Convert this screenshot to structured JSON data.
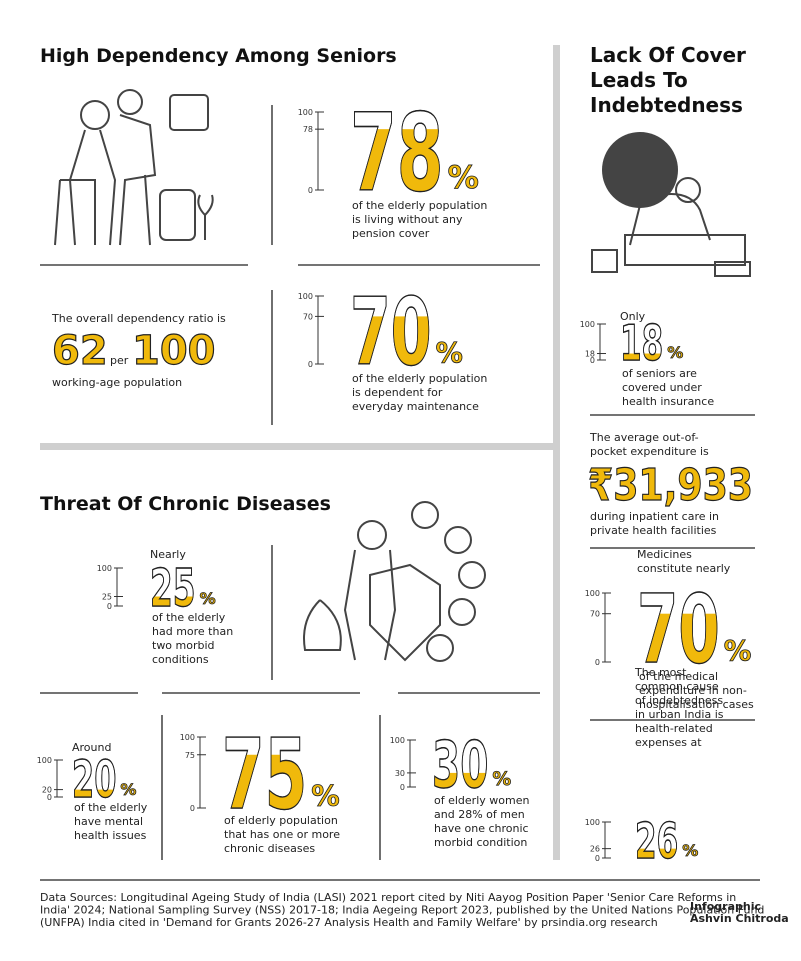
{
  "dependency": {
    "title": "High Dependency Among Seniors",
    "stats": [
      {
        "value": 78,
        "unit": "%",
        "scale": [
          100,
          78,
          0
        ],
        "text": [
          "of the elderly population",
          "is living without any",
          "pension cover"
        ]
      },
      {
        "value": 70,
        "unit": "%",
        "scale": [
          100,
          70,
          0
        ],
        "text": [
          "of the elderly population",
          "is dependent for",
          "everyday maintenance"
        ]
      }
    ],
    "ratio": {
      "intro": "The overall dependency ratio is",
      "value": 62,
      "per": "per",
      "base": 100,
      "outro": "working-age population"
    }
  },
  "chronic": {
    "title": "Threat Of Chronic Diseases",
    "stats": [
      {
        "lead": [
          "Nearly"
        ],
        "value": 25,
        "unit": "%",
        "scale": [
          100,
          25,
          0
        ],
        "text": [
          "of the elderly",
          "had more than",
          "two morbid",
          "conditions"
        ]
      },
      {
        "lead": [
          "Around"
        ],
        "value": 20,
        "unit": "%",
        "scale": [
          100,
          20,
          0
        ],
        "text": [
          "of the elderly",
          "have mental",
          "health issues"
        ]
      },
      {
        "value": 75,
        "unit": "%",
        "scale": [
          100,
          75,
          0
        ],
        "text": [
          "of elderly population",
          "that has one or more",
          "chronic diseases"
        ]
      },
      {
        "value": 30,
        "unit": "%",
        "scale": [
          100,
          30,
          0
        ],
        "text": [
          "of elderly women",
          "and 28% of men",
          "have one chronic",
          "morbid condition"
        ]
      }
    ]
  },
  "cover": {
    "title": [
      "Lack Of Cover",
      "Leads To",
      "Indebtedness"
    ],
    "stats": [
      {
        "lead": [
          "Only"
        ],
        "value": 18,
        "unit": "%",
        "scale": [
          100,
          18,
          0
        ],
        "text": [
          "of seniors are",
          "covered under",
          "health insurance"
        ]
      },
      {
        "lead": [
          "Medicines",
          "constitute nearly"
        ],
        "value": 70,
        "unit": "%",
        "scale": [
          100,
          70,
          0
        ],
        "text": [
          "of the medical",
          "expenditure in non-",
          "hospitalisation cases"
        ]
      },
      {
        "lead": [
          "The most",
          "common cause",
          "of indebtedness",
          "in urban India is",
          "health-related",
          "expenses at"
        ],
        "value": 26,
        "unit": "%",
        "scale": [
          100,
          26,
          0
        ]
      }
    ],
    "expenditure": {
      "intro": [
        "The average out-of-",
        "pocket expenditure is"
      ],
      "amount": "₹31,933",
      "outro": [
        "during inpatient care in",
        "private health facilities"
      ]
    }
  },
  "sources": [
    "Data Sources: Longitudinal Ageing Study of India (LASI) 2021 report cited by Niti Aayog Position Paper 'Senior Care Reforms in",
    "India' 2024; National Sampling Survey (NSS) 2017-18; India Aegeing Report 2023, published by the United Nations Population Fund",
    "(UNFPA) India cited in 'Demand for Grants 2026-27 Analysis Health and Family Welfare' by prsindia.org research"
  ],
  "credit": [
    "Infographic",
    "Ashvin Chitroda"
  ]
}
